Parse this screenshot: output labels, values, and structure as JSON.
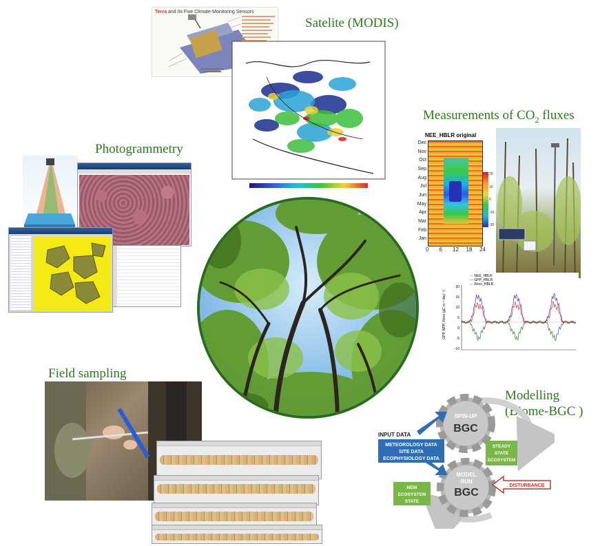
{
  "labels": {
    "satellite": "Satelite (MODIS)",
    "measurements_prefix": "Measurements of CO",
    "measurements_sub": "2",
    "measurements_suffix": " fluxes",
    "photogrammetry": "Photogrammetry",
    "field_sampling": "Field sampling",
    "modelling_line1": "Modelling",
    "modelling_line2": "(Biome-BGC )"
  },
  "terra": {
    "title_brand": "Terra",
    "title_rest": " and Its Five Climate-Monitoring Sensors"
  },
  "heatmap": {
    "title": "NEE_HBLR original",
    "months": [
      "Dec",
      "Nov",
      "Oct",
      "Sep",
      "Aug",
      "Jul",
      "Jun",
      "May",
      "Apr",
      "Mar",
      "Feb",
      "Jan"
    ],
    "hours": [
      "0",
      "6",
      "12",
      "18",
      "24"
    ],
    "scale": [
      "20",
      "10",
      "0",
      "-10",
      "-20"
    ]
  },
  "flux_chart": {
    "legend": [
      "NEE_HBLR",
      "GPP_HBLR",
      "Reco_HBLR"
    ],
    "ylabel": "GPP, NPP, Reco (gC m⁻² day⁻¹)",
    "yticks": [
      "20",
      "15",
      "10",
      "5",
      "0",
      "-5",
      "-10"
    ],
    "colors": {
      "nee": "#2e7d32",
      "gpp": "#3a3ad0",
      "reco": "#d03a3a"
    }
  },
  "model": {
    "spinup_line1": "SPIN-UP",
    "spinup_line2": "BGC",
    "run_line1": "MODEL",
    "run_line2": "RUN",
    "run_line3": "BGC",
    "input_title": "INPUT DATA",
    "input_lines": [
      "METEOROLOGY DATA",
      "SITE DATA",
      "ECOPHYSIOLOGY DATA"
    ],
    "steady": [
      "STEADY",
      "STATE",
      "ECOSYSTEM"
    ],
    "new_eco": [
      "NEW",
      "ECOSYSTEM",
      "STATE"
    ],
    "disturbance": "DISTURBANCE",
    "colors": {
      "input": "#2f6db5",
      "green": "#7ab648",
      "disturbance_text": "#c0392b",
      "gear": "#b8b8b8"
    }
  }
}
